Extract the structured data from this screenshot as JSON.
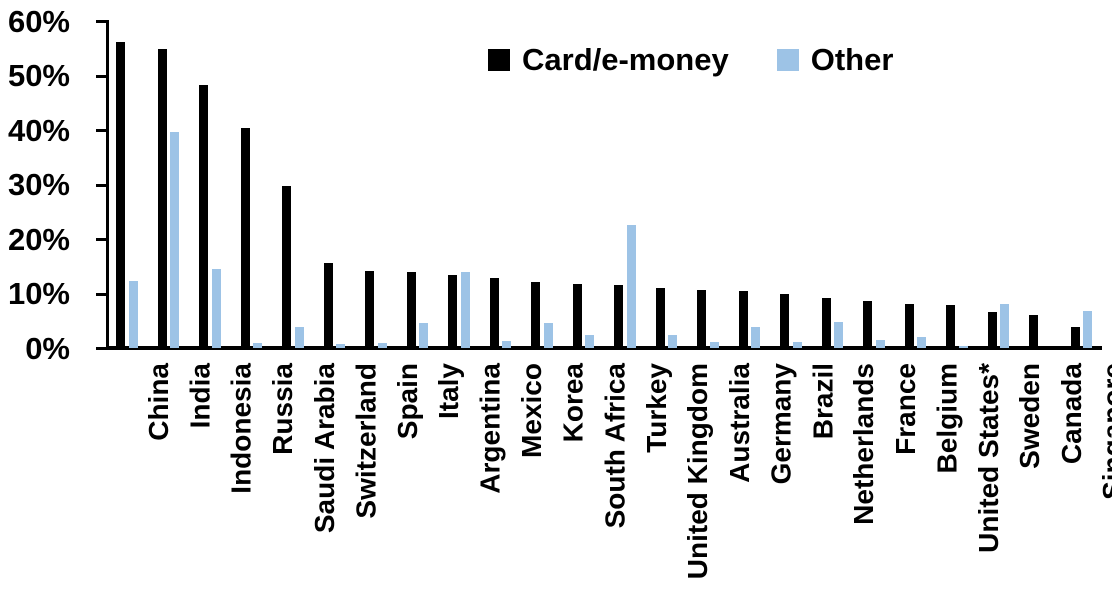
{
  "chart_data": {
    "type": "bar",
    "title": "",
    "xlabel": "",
    "ylabel": "",
    "ylim": [
      0,
      60
    ],
    "grid": false,
    "legend_position": "top-center",
    "yticks": [
      "0%",
      "10%",
      "20%",
      "30%",
      "40%",
      "50%",
      "60%"
    ],
    "ytick_values": [
      0,
      10,
      20,
      30,
      40,
      50,
      60
    ],
    "categories": [
      "China",
      "India",
      "Indonesia",
      "Russia",
      "Saudi Arabia",
      "Switzerland",
      "Spain",
      "Italy",
      "Argentina",
      "Mexico",
      "Korea",
      "South Africa",
      "Turkey",
      "United Kingdom",
      "Australia",
      "Germany",
      "Brazil",
      "Netherlands",
      "France",
      "Belgium",
      "United States*",
      "Sweden",
      "Canada",
      "Singapore"
    ],
    "series": [
      {
        "name": "Card/e-money",
        "color": "#000000",
        "values": [
          56.3,
          55.0,
          48.3,
          40.5,
          29.9,
          15.7,
          14.2,
          14.1,
          13.5,
          13.0,
          12.2,
          11.8,
          11.7,
          11.1,
          10.8,
          10.6,
          10.0,
          9.3,
          8.7,
          8.2,
          8.0,
          6.7,
          6.1,
          3.9
        ]
      },
      {
        "name": "Other",
        "color": "#9dc3e6",
        "values": [
          12.4,
          39.8,
          14.5,
          1.0,
          3.9,
          0.8,
          1.0,
          4.7,
          14.0,
          1.4,
          4.6,
          2.4,
          22.7,
          2.4,
          1.2,
          4.0,
          1.2,
          4.8,
          1.6,
          2.1,
          0.4,
          8.2,
          0.0,
          6.8
        ]
      }
    ]
  }
}
